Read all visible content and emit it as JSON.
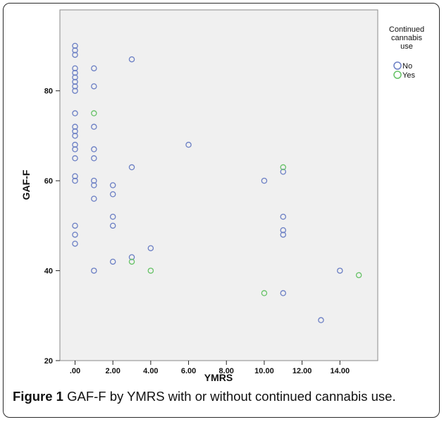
{
  "caption": {
    "label": "Figure 1",
    "text": "GAF-F by YMRS with or without continued cannabis use."
  },
  "chart_data": {
    "type": "scatter",
    "xlabel": "YMRS",
    "ylabel": "GAF-F",
    "xlim": [
      -0.8,
      16.0
    ],
    "ylim": [
      20,
      98
    ],
    "x_ticks": [
      0,
      2,
      4,
      6,
      8,
      10,
      12,
      14
    ],
    "x_tick_labels": [
      ".00",
      "2.00",
      "4.00",
      "6.00",
      "8.00",
      "10.00",
      "12.00",
      "14.00"
    ],
    "y_ticks": [
      20,
      40,
      60,
      80
    ],
    "y_tick_labels": [
      "20",
      "40",
      "60",
      "80"
    ],
    "grid": false,
    "plot_background": "#f0f0f0",
    "legend": {
      "title": "Continued cannabis use",
      "title_lines": [
        "Continued",
        "cannabis",
        "use"
      ],
      "placement": "right"
    },
    "series": [
      {
        "name": "No",
        "color": "#6b7fc4",
        "points": [
          [
            0,
            90
          ],
          [
            0,
            89
          ],
          [
            0,
            88
          ],
          [
            0,
            85
          ],
          [
            0,
            84
          ],
          [
            0,
            83
          ],
          [
            0,
            82
          ],
          [
            0,
            81
          ],
          [
            0,
            80
          ],
          [
            0,
            75
          ],
          [
            0,
            72
          ],
          [
            0,
            71
          ],
          [
            0,
            70
          ],
          [
            0,
            68
          ],
          [
            0,
            67
          ],
          [
            0,
            65
          ],
          [
            0,
            61
          ],
          [
            0,
            60
          ],
          [
            0,
            50
          ],
          [
            0,
            48
          ],
          [
            0,
            46
          ],
          [
            1,
            85
          ],
          [
            1,
            81
          ],
          [
            1,
            72
          ],
          [
            1,
            67
          ],
          [
            1,
            65
          ],
          [
            1,
            60
          ],
          [
            1,
            59
          ],
          [
            1,
            56
          ],
          [
            1,
            40
          ],
          [
            2,
            59
          ],
          [
            2,
            57
          ],
          [
            2,
            52
          ],
          [
            2,
            50
          ],
          [
            2,
            42
          ],
          [
            3,
            87
          ],
          [
            3,
            63
          ],
          [
            3,
            43
          ],
          [
            4,
            45
          ],
          [
            6,
            68
          ],
          [
            10,
            60
          ],
          [
            11,
            62
          ],
          [
            11,
            52
          ],
          [
            11,
            49
          ],
          [
            11,
            48
          ],
          [
            11,
            35
          ],
          [
            13,
            29
          ],
          [
            14,
            40
          ]
        ]
      },
      {
        "name": "Yes",
        "color": "#66c266",
        "points": [
          [
            1,
            75
          ],
          [
            3,
            42
          ],
          [
            4,
            40
          ],
          [
            10,
            35
          ],
          [
            11,
            63
          ],
          [
            15,
            39
          ]
        ]
      }
    ]
  }
}
